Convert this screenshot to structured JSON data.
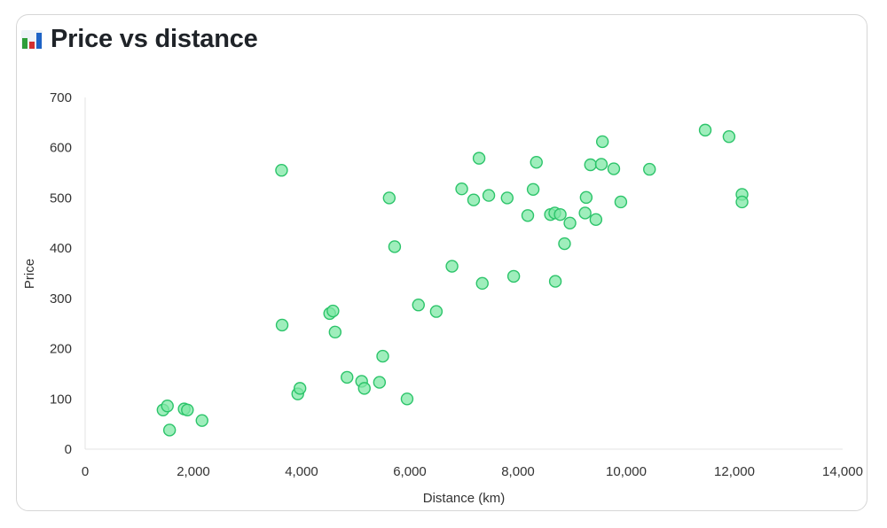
{
  "header": {
    "icon": "bar-chart-icon",
    "title": "Price vs distance"
  },
  "colors": {
    "point_fill": "#7fe8a6",
    "point_stroke": "#2cc46a",
    "icon_bars": [
      "#2e9e3a",
      "#d32f2f",
      "#1e63c6"
    ]
  },
  "chart_data": {
    "type": "scatter",
    "xlabel": "Distance (km)",
    "ylabel": "Price",
    "xlim": [
      0,
      14000
    ],
    "ylim": [
      0,
      700
    ],
    "x_ticks": [
      0,
      2000,
      4000,
      6000,
      8000,
      10000,
      12000,
      14000
    ],
    "x_tick_labels": [
      "0",
      "2,000",
      "4,000",
      "6,000",
      "8,000",
      "10,000",
      "12,000",
      "14,000"
    ],
    "y_ticks": [
      0,
      100,
      200,
      300,
      400,
      500,
      600,
      700
    ],
    "y_tick_labels": [
      "0",
      "100",
      "200",
      "300",
      "400",
      "500",
      "600",
      "700"
    ],
    "grid": false,
    "legend": "none",
    "points": [
      {
        "x": 1440,
        "y": 78
      },
      {
        "x": 1520,
        "y": 86
      },
      {
        "x": 1560,
        "y": 38
      },
      {
        "x": 1830,
        "y": 80
      },
      {
        "x": 1890,
        "y": 78
      },
      {
        "x": 2160,
        "y": 57
      },
      {
        "x": 3630,
        "y": 555
      },
      {
        "x": 3640,
        "y": 247
      },
      {
        "x": 3930,
        "y": 110
      },
      {
        "x": 3970,
        "y": 121
      },
      {
        "x": 4520,
        "y": 270
      },
      {
        "x": 4580,
        "y": 275
      },
      {
        "x": 4620,
        "y": 233
      },
      {
        "x": 4840,
        "y": 143
      },
      {
        "x": 5110,
        "y": 135
      },
      {
        "x": 5160,
        "y": 121
      },
      {
        "x": 5440,
        "y": 133
      },
      {
        "x": 5500,
        "y": 185
      },
      {
        "x": 5620,
        "y": 500
      },
      {
        "x": 5720,
        "y": 403
      },
      {
        "x": 5950,
        "y": 100
      },
      {
        "x": 6160,
        "y": 287
      },
      {
        "x": 6490,
        "y": 274
      },
      {
        "x": 6780,
        "y": 364
      },
      {
        "x": 6960,
        "y": 518
      },
      {
        "x": 7180,
        "y": 496
      },
      {
        "x": 7280,
        "y": 579
      },
      {
        "x": 7340,
        "y": 330
      },
      {
        "x": 7460,
        "y": 505
      },
      {
        "x": 7800,
        "y": 500
      },
      {
        "x": 7920,
        "y": 344
      },
      {
        "x": 8180,
        "y": 465
      },
      {
        "x": 8280,
        "y": 517
      },
      {
        "x": 8340,
        "y": 571
      },
      {
        "x": 8600,
        "y": 467
      },
      {
        "x": 8680,
        "y": 470
      },
      {
        "x": 8690,
        "y": 334
      },
      {
        "x": 8780,
        "y": 467
      },
      {
        "x": 8860,
        "y": 409
      },
      {
        "x": 8960,
        "y": 450
      },
      {
        "x": 9240,
        "y": 470
      },
      {
        "x": 9260,
        "y": 501
      },
      {
        "x": 9340,
        "y": 566
      },
      {
        "x": 9440,
        "y": 457
      },
      {
        "x": 9540,
        "y": 567
      },
      {
        "x": 9560,
        "y": 612
      },
      {
        "x": 9770,
        "y": 558
      },
      {
        "x": 9900,
        "y": 492
      },
      {
        "x": 10430,
        "y": 557
      },
      {
        "x": 11460,
        "y": 635
      },
      {
        "x": 11900,
        "y": 622
      },
      {
        "x": 12140,
        "y": 507
      },
      {
        "x": 12140,
        "y": 492
      }
    ]
  }
}
